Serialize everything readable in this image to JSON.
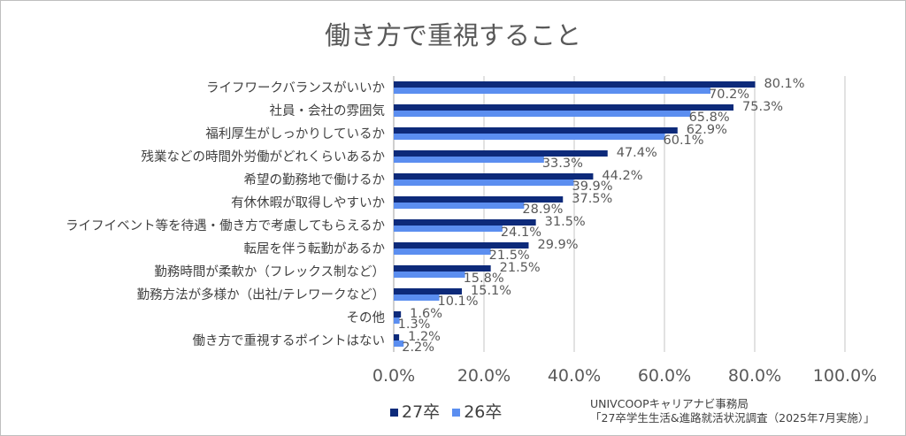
{
  "chart_data": {
    "type": "bar",
    "orientation": "horizontal",
    "title": "働き方で重視すること",
    "categories": [
      "ライフワークバランスがいいか",
      "社員・会社の雰囲気",
      "福利厚生がしっかりしているか",
      "残業などの時間外労働がどれくらいあるか",
      "希望の勤務地で働けるか",
      "有休休暇が取得しやすいか",
      "ライフイベント等を待遇・働き方で考慮してもらえるか",
      "転居を伴う転勤があるか",
      "勤務時間が柔軟か（フレックス制など）",
      "勤務方法が多様か（出社/テレワークなど）",
      "その他",
      "働き方で重視するポイントはない"
    ],
    "series": [
      {
        "name": "27卒",
        "color": "#0d2a7a",
        "values": [
          80.1,
          75.3,
          62.9,
          47.4,
          44.2,
          37.5,
          31.5,
          29.9,
          21.5,
          15.1,
          1.6,
          1.2
        ]
      },
      {
        "name": "26卒",
        "color": "#5b8ef0",
        "values": [
          70.2,
          65.8,
          60.1,
          33.3,
          39.9,
          28.9,
          24.1,
          21.5,
          15.8,
          10.1,
          1.3,
          2.2
        ]
      }
    ],
    "xlim": [
      0,
      100
    ],
    "xticks": [
      "0.0%",
      "20.0%",
      "40.0%",
      "60.0%",
      "80.0%",
      "100.0%"
    ],
    "grid": true,
    "legend": "bottom"
  },
  "source": [
    "UNIVCOOPキャリアナビ事務局",
    "「27卒学生生活&進路就活状況調査（2025年7月実施）」"
  ]
}
